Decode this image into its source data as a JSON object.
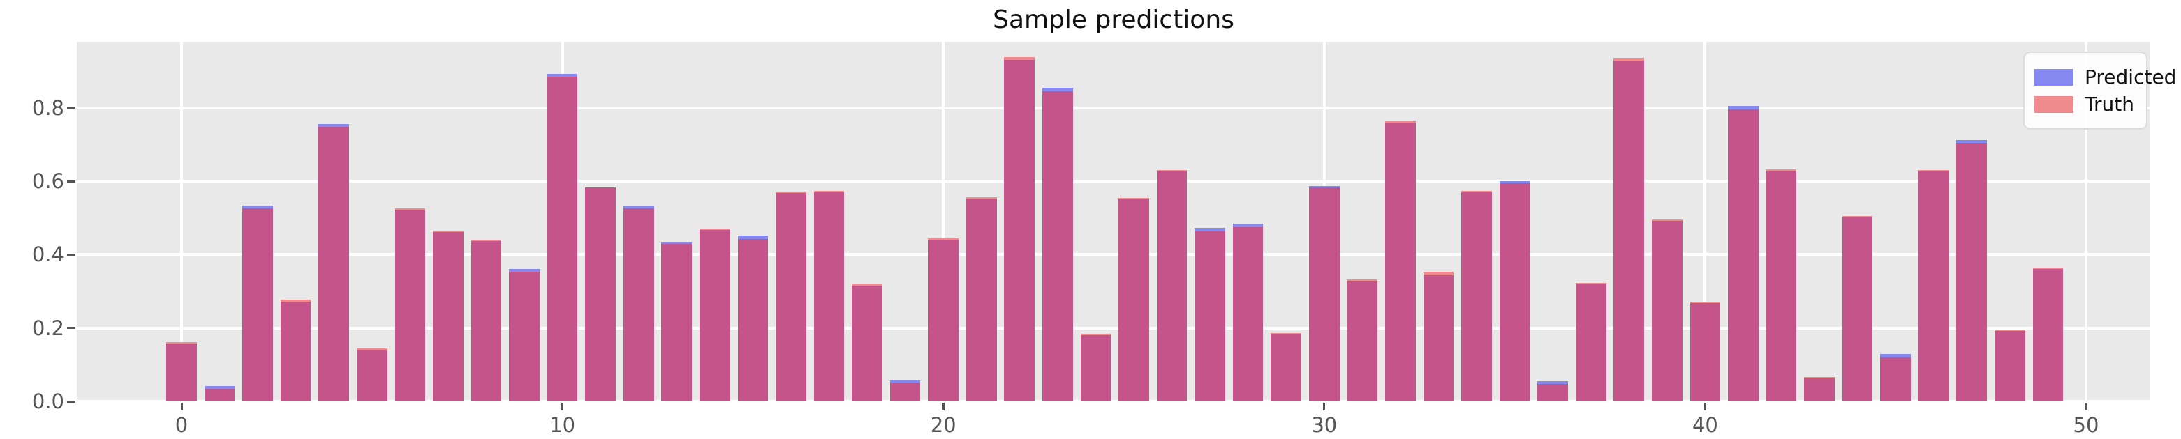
{
  "chart_data": {
    "type": "bar",
    "title": "Sample predictions",
    "x": [
      0,
      1,
      2,
      3,
      4,
      5,
      6,
      7,
      8,
      9,
      10,
      11,
      12,
      13,
      14,
      15,
      16,
      17,
      18,
      19,
      20,
      21,
      22,
      23,
      24,
      25,
      26,
      27,
      28,
      29,
      30,
      31,
      32,
      33,
      34,
      35,
      36,
      37,
      38,
      39,
      40,
      41,
      42,
      43,
      44,
      45,
      46,
      47,
      48,
      49
    ],
    "series": [
      {
        "name": "Predicted",
        "color": "#8588ef",
        "values": [
          0.155,
          0.041,
          0.533,
          0.272,
          0.755,
          0.14,
          0.52,
          0.462,
          0.437,
          0.36,
          0.893,
          0.583,
          0.531,
          0.433,
          0.468,
          0.453,
          0.568,
          0.57,
          0.315,
          0.057,
          0.44,
          0.553,
          0.93,
          0.854,
          0.181,
          0.551,
          0.626,
          0.472,
          0.484,
          0.182,
          0.585,
          0.329,
          0.76,
          0.343,
          0.57,
          0.6,
          0.055,
          0.32,
          0.928,
          0.491,
          0.267,
          0.805,
          0.628,
          0.062,
          0.502,
          0.129,
          0.627,
          0.713,
          0.192,
          0.36
        ]
      },
      {
        "name": "Truth",
        "color": "#f08a8c",
        "values": [
          0.162,
          0.034,
          0.526,
          0.277,
          0.748,
          0.144,
          0.527,
          0.465,
          0.44,
          0.354,
          0.886,
          0.583,
          0.527,
          0.43,
          0.471,
          0.443,
          0.572,
          0.574,
          0.32,
          0.049,
          0.444,
          0.556,
          0.938,
          0.846,
          0.185,
          0.555,
          0.63,
          0.463,
          0.474,
          0.185,
          0.583,
          0.332,
          0.766,
          0.354,
          0.572,
          0.594,
          0.047,
          0.322,
          0.936,
          0.495,
          0.27,
          0.796,
          0.63,
          0.065,
          0.505,
          0.12,
          0.63,
          0.705,
          0.195,
          0.362
        ]
      }
    ],
    "overlap_color": "#c5548b",
    "plot_bg_color": "#e9e9e9",
    "grid_color": "#ffffff",
    "tick_color": "#555555",
    "title_color": "#111111",
    "x_tick_labels": [
      "0",
      "10",
      "20",
      "30",
      "40",
      "50"
    ],
    "x_tick_values": [
      0,
      10,
      20,
      30,
      40,
      50
    ],
    "y_tick_labels": [
      "0.0",
      "0.2",
      "0.4",
      "0.6",
      "0.8"
    ],
    "y_tick_values": [
      0.0,
      0.2,
      0.4,
      0.6,
      0.8
    ],
    "ylim": [
      0,
      0.98
    ],
    "grid": true,
    "legend_position": "upper right",
    "bar_width_fraction": 0.8
  }
}
